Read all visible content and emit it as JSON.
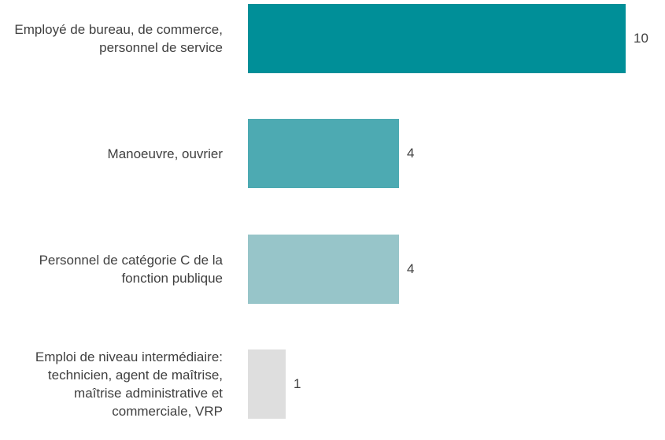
{
  "chart_data": {
    "type": "bar",
    "orientation": "horizontal",
    "categories": [
      "Employé de bureau, de commerce, personnel de service",
      "Manoeuvre, ouvrier",
      "Personnel de catégorie C de la fonction publique",
      "Emploi de niveau intermédiaire: technicien, agent de maîtrise, maîtrise administrative et commerciale, VRP"
    ],
    "values": [
      10,
      4,
      4,
      1
    ],
    "colors": [
      "#008f98",
      "#4daab2",
      "#97c5c9",
      "#dedede"
    ]
  }
}
